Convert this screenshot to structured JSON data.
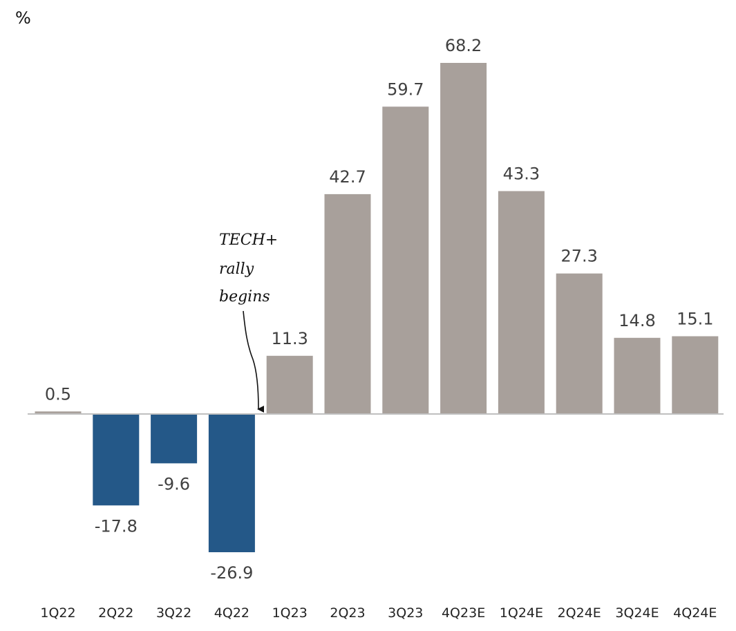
{
  "chart_data": {
    "type": "bar",
    "unit_label": "%",
    "categories": [
      "1Q22",
      "2Q22",
      "3Q22",
      "4Q22",
      "1Q23",
      "2Q23",
      "3Q23",
      "4Q23E",
      "1Q24E",
      "2Q24E",
      "3Q24E",
      "4Q24E"
    ],
    "values": [
      0.5,
      -17.8,
      -9.6,
      -26.9,
      11.3,
      42.7,
      59.7,
      68.2,
      43.3,
      27.3,
      14.8,
      15.1
    ],
    "value_labels": [
      "0.5",
      "-17.8",
      "-9.6",
      "-26.9",
      "11.3",
      "42.7",
      "59.7",
      "68.2",
      "43.3",
      "27.3",
      "14.8",
      "15.1"
    ],
    "colors": {
      "positive": "#a8a09b",
      "negative": "#245888",
      "axis": "#bfbfbf"
    },
    "ylim": [
      -26.9,
      68.2
    ],
    "grid": false,
    "annotation": {
      "lines": [
        "TECH+",
        "rally",
        "begins"
      ],
      "points_to_category": "1Q23"
    }
  }
}
